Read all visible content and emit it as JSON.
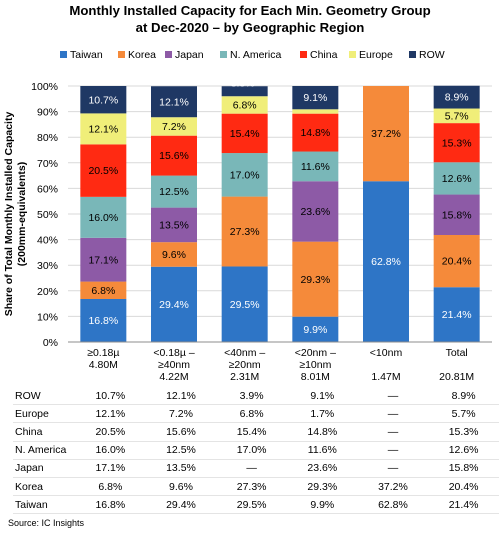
{
  "title_line1": "Monthly Installed Capacity for Each Min. Geometry Group",
  "title_line2": "at Dec-2020 – by Geographic Region",
  "source": "Source:  IC Insights",
  "chart_data": {
    "type": "bar",
    "stacked": true,
    "ylabel_line1": "Share of Total Monthly Installed Capacity",
    "ylabel_line2": "(200mm-equivalents)",
    "ylim": [
      0,
      100
    ],
    "yticks": [
      "0%",
      "10%",
      "20%",
      "30%",
      "40%",
      "50%",
      "60%",
      "70%",
      "80%",
      "90%",
      "100%"
    ],
    "legend_position": "top",
    "categories": [
      {
        "label": "≥0.18µ",
        "cap": "4.80M"
      },
      {
        "label": "<0.18µ –\n≥40nm",
        "cap": "4.22M"
      },
      {
        "label": "<40nm –\n≥20nm",
        "cap": "2.31M"
      },
      {
        "label": "<20nm –\n≥10nm",
        "cap": "8.01M"
      },
      {
        "label": "<10nm",
        "cap": "1.47M"
      },
      {
        "label": "Total",
        "cap": "20.81M"
      }
    ],
    "series": [
      {
        "name": "Taiwan",
        "color": "#2e75c6",
        "values": [
          16.8,
          29.4,
          29.5,
          9.9,
          62.8,
          21.4
        ],
        "table": [
          "16.8%",
          "29.4%",
          "29.5%",
          "9.9%",
          "62.8%",
          "21.4%"
        ]
      },
      {
        "name": "Korea",
        "color": "#f58a3a",
        "values": [
          6.8,
          9.6,
          27.3,
          29.3,
          37.2,
          20.4
        ],
        "table": [
          "6.8%",
          "9.6%",
          "27.3%",
          "29.3%",
          "37.2%",
          "20.4%"
        ]
      },
      {
        "name": "Japan",
        "color": "#8d5aa6",
        "values": [
          17.1,
          13.5,
          0,
          23.6,
          0,
          15.8
        ],
        "table": [
          "17.1%",
          "13.5%",
          "—",
          "23.6%",
          "—",
          "15.8%"
        ]
      },
      {
        "name": "N. America",
        "color": "#79b7b8",
        "values": [
          16.0,
          12.5,
          17.0,
          11.6,
          0,
          12.6
        ],
        "table": [
          "16.0%",
          "12.5%",
          "17.0%",
          "11.6%",
          "—",
          "12.6%"
        ]
      },
      {
        "name": "China",
        "color": "#ff2a12",
        "values": [
          20.5,
          15.6,
          15.4,
          14.8,
          0,
          15.3
        ],
        "table": [
          "20.5%",
          "15.6%",
          "15.4%",
          "14.8%",
          "—",
          "15.3%"
        ]
      },
      {
        "name": "Europe",
        "color": "#f0ee79",
        "values": [
          12.1,
          7.2,
          6.8,
          1.7,
          0,
          5.7
        ],
        "table": [
          "12.1%",
          "7.2%",
          "6.8%",
          "1.7%",
          "—",
          "5.7%"
        ]
      },
      {
        "name": "ROW",
        "color": "#1f3864",
        "values": [
          10.7,
          12.1,
          3.9,
          9.1,
          0,
          8.9
        ],
        "table": [
          "10.7%",
          "12.1%",
          "3.9%",
          "9.1%",
          "—",
          "8.9%"
        ]
      }
    ],
    "segment_labels": [
      [
        "16.8%",
        "6.8%",
        "17.1%",
        "16.0%",
        "20.5%",
        "12.1%",
        "10.7%"
      ],
      [
        "29.4%",
        "9.6%",
        "13.5%",
        "12.5%",
        "15.6%",
        "7.2%",
        "12.1%"
      ],
      [
        "29.5%",
        "27.3%",
        "",
        "17.0%",
        "15.4%",
        "6.8%",
        "3.9%"
      ],
      [
        "9.9%",
        "29.3%",
        "23.6%",
        "11.6%",
        "14.8%",
        "",
        "9.1%"
      ],
      [
        "62.8%",
        "37.2%",
        "",
        "",
        "",
        "",
        ""
      ],
      [
        "21.4%",
        "20.4%",
        "15.8%",
        "12.6%",
        "15.3%",
        "5.7%",
        "8.9%"
      ]
    ],
    "table_row_order": [
      "ROW",
      "Europe",
      "China",
      "N. America",
      "Japan",
      "Korea",
      "Taiwan"
    ]
  }
}
